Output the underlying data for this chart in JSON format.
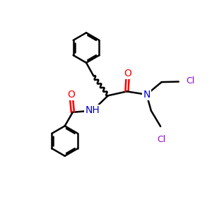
{
  "bg_color": "#ffffff",
  "atom_colors": {
    "C": "#000000",
    "N": "#0000cc",
    "O": "#ff0000",
    "Cl": "#9900cc",
    "H": "#000000"
  },
  "bond_color": "#000000",
  "bond_width": 1.8,
  "font_size_atom": 10,
  "title": "",
  "xlim": [
    0,
    10
  ],
  "ylim": [
    0,
    10
  ]
}
